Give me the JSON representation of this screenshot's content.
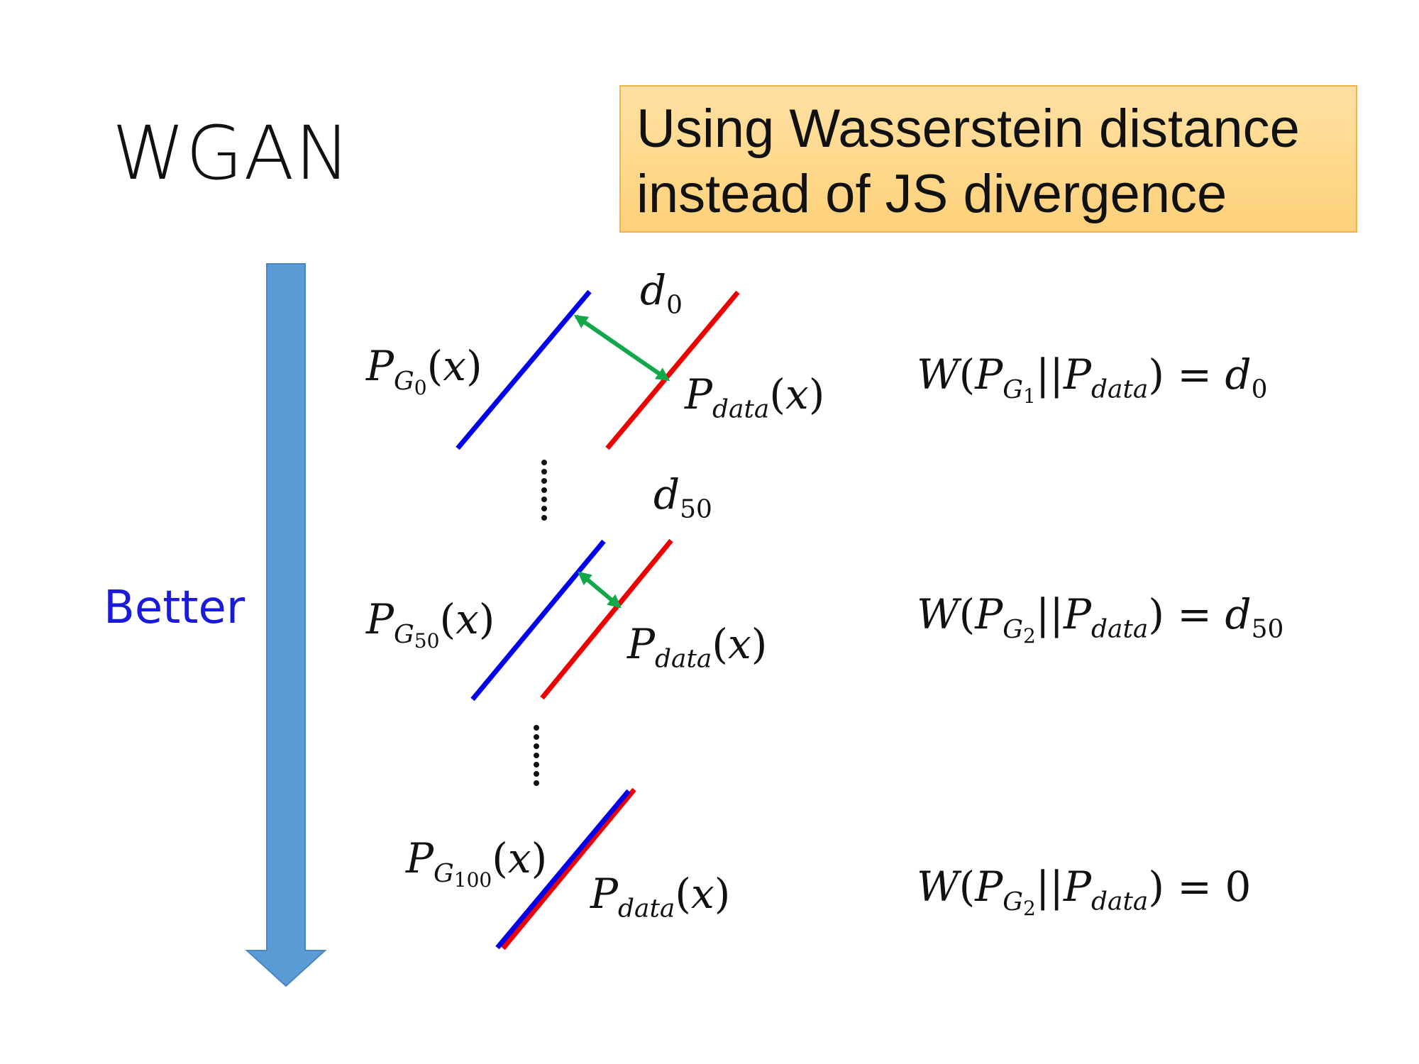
{
  "title": "WGAN",
  "callout": {
    "line1": "Using Wasserstein distance",
    "line2": "instead of JS divergence"
  },
  "progress_label": "Better",
  "rows": [
    {
      "distance_label": "d0",
      "generator_label": "PG0(x)",
      "data_label": "Pdata(x)",
      "equation": "W(PG1||Pdata) = d0"
    },
    {
      "distance_label": "d50",
      "generator_label": "PG50(x)",
      "data_label": "Pdata(x)",
      "equation": "W(PG2||Pdata) = d50"
    },
    {
      "distance_label": "",
      "generator_label": "PG100(x)",
      "data_label": "Pdata(x)",
      "equation": "W(PG2||Pdata) = 0"
    }
  ],
  "colors": {
    "generator_line": "#0000ee",
    "data_line": "#ee0000",
    "distance_arrow": "#12a84a",
    "progress_arrow": "#5b9bd5",
    "callout_fill": "#ffd98e",
    "callout_border": "#f0b24a",
    "better_text": "#1a1adb"
  },
  "icons": {
    "progress_arrow": "down-arrow-icon",
    "distance_arrow": "double-headed-arrow-icon",
    "ellipsis": "vertical-ellipsis-icon"
  }
}
